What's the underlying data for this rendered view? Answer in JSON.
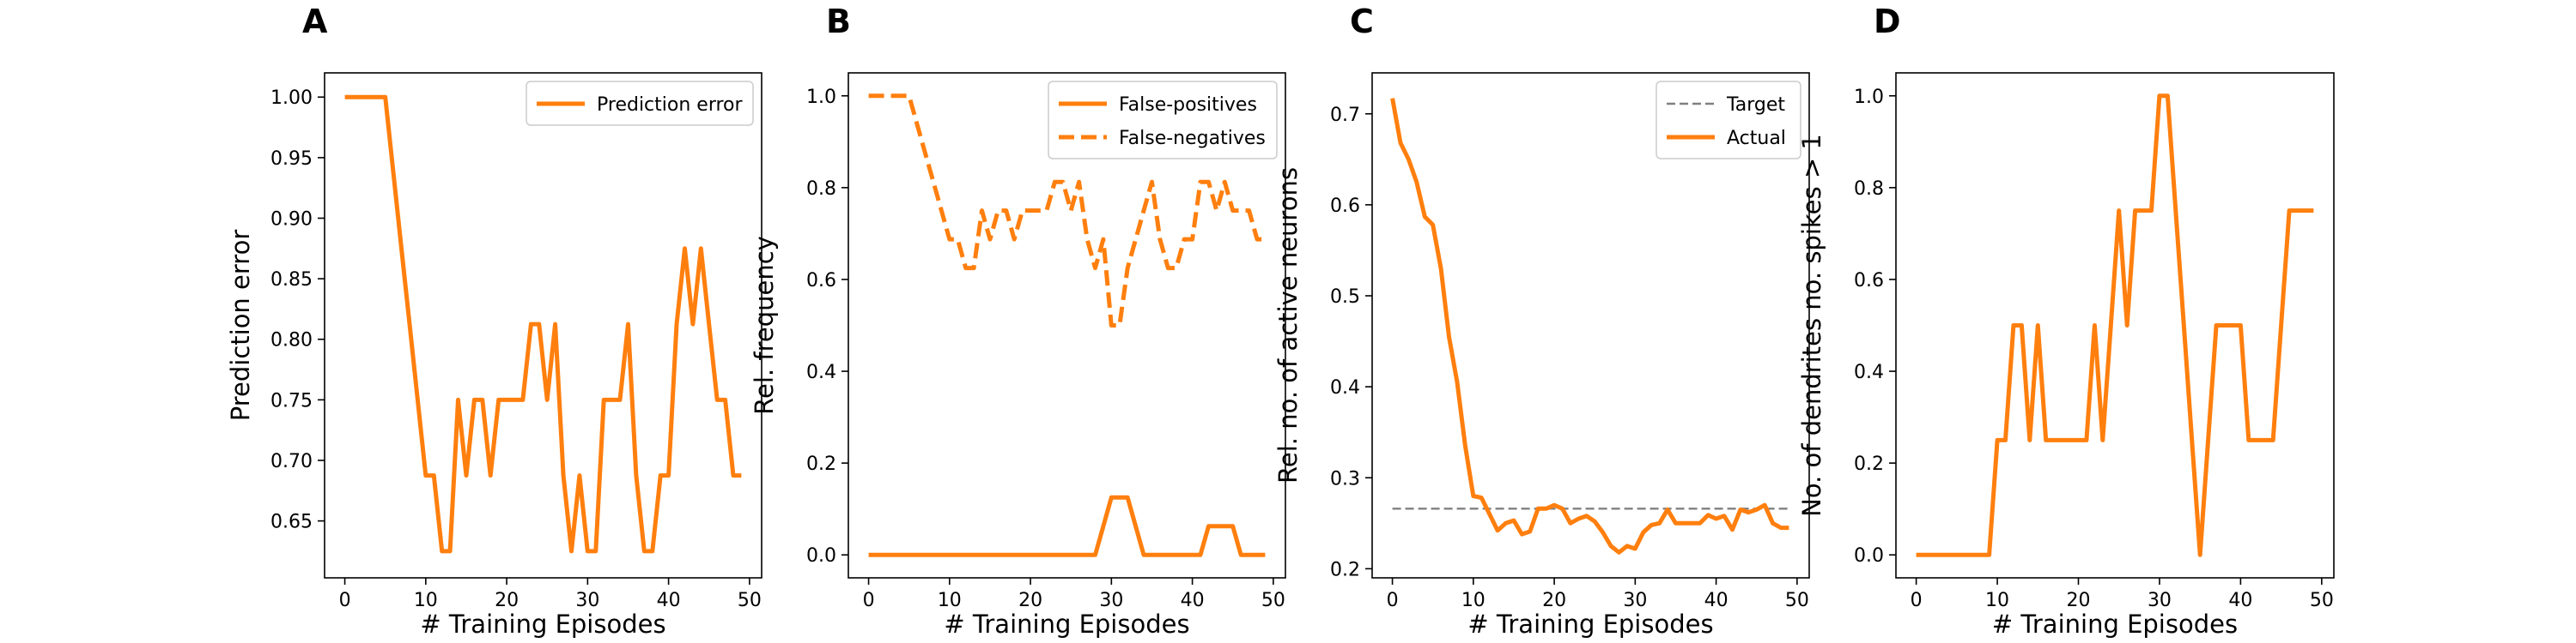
{
  "chart_data": [
    {
      "panel": "A",
      "type": "line",
      "xlabel": "# Training Episodes",
      "ylabel": "Prediction error",
      "xlim": [
        -2.5,
        51.5
      ],
      "ylim": [
        0.603,
        1.02
      ],
      "xticks": [
        0,
        10,
        20,
        30,
        40,
        50
      ],
      "xtick_labels": [
        "0",
        "10",
        "20",
        "30",
        "40",
        "50"
      ],
      "yticks": [
        0.65,
        0.7,
        0.75,
        0.8,
        0.85,
        0.9,
        0.95,
        1.0
      ],
      "ytick_labels": [
        "0.65",
        "0.70",
        "0.75",
        "0.80",
        "0.85",
        "0.90",
        "0.95",
        "1.00"
      ],
      "legend_position": "top-right",
      "series": [
        {
          "name": "Prediction error",
          "color": "#ff7f0e",
          "dash": "solid",
          "x": [
            0,
            1,
            2,
            3,
            4,
            5,
            6,
            7,
            8,
            9,
            10,
            11,
            12,
            13,
            14,
            15,
            16,
            17,
            18,
            19,
            20,
            21,
            22,
            23,
            24,
            25,
            26,
            27,
            28,
            29,
            30,
            31,
            32,
            33,
            34,
            35,
            36,
            37,
            38,
            39,
            40,
            41,
            42,
            43,
            44,
            45,
            46,
            47,
            48,
            49
          ],
          "y": [
            1.0,
            1.0,
            1.0,
            1.0,
            1.0,
            1.0,
            0.9375,
            0.875,
            0.8125,
            0.75,
            0.6875,
            0.6875,
            0.625,
            0.625,
            0.75,
            0.6875,
            0.75,
            0.75,
            0.6875,
            0.75,
            0.75,
            0.75,
            0.75,
            0.8125,
            0.8125,
            0.75,
            0.8125,
            0.6875,
            0.625,
            0.6875,
            0.625,
            0.625,
            0.75,
            0.75,
            0.75,
            0.8125,
            0.6875,
            0.625,
            0.625,
            0.6875,
            0.6875,
            0.8125,
            0.875,
            0.8125,
            0.875,
            0.8125,
            0.75,
            0.75,
            0.6875,
            0.6875
          ]
        }
      ]
    },
    {
      "panel": "B",
      "type": "line",
      "xlabel": "# Training Episodes",
      "ylabel": "Rel. frequency",
      "xlim": [
        -2.5,
        51.5
      ],
      "ylim": [
        -0.05,
        1.05
      ],
      "xticks": [
        0,
        10,
        20,
        30,
        40,
        50
      ],
      "xtick_labels": [
        "0",
        "10",
        "20",
        "30",
        "40",
        "50"
      ],
      "yticks": [
        0.0,
        0.2,
        0.4,
        0.6,
        0.8,
        1.0
      ],
      "ytick_labels": [
        "0.0",
        "0.2",
        "0.4",
        "0.6",
        "0.8",
        "1.0"
      ],
      "legend_position": "top-right",
      "series": [
        {
          "name": "False-positives",
          "color": "#ff7f0e",
          "dash": "solid",
          "x": [
            0,
            1,
            2,
            3,
            4,
            5,
            6,
            7,
            8,
            9,
            10,
            11,
            12,
            13,
            14,
            15,
            16,
            17,
            18,
            19,
            20,
            21,
            22,
            23,
            24,
            25,
            26,
            27,
            28,
            29,
            30,
            31,
            32,
            33,
            34,
            35,
            36,
            37,
            38,
            39,
            40,
            41,
            42,
            43,
            44,
            45,
            46,
            47,
            48,
            49
          ],
          "y": [
            0,
            0,
            0,
            0,
            0,
            0,
            0,
            0,
            0,
            0,
            0,
            0,
            0,
            0,
            0,
            0,
            0,
            0,
            0,
            0,
            0,
            0,
            0,
            0,
            0,
            0,
            0,
            0,
            0,
            0.0625,
            0.125,
            0.125,
            0.125,
            0.0625,
            0,
            0,
            0,
            0,
            0,
            0,
            0,
            0,
            0.0625,
            0.0625,
            0.0625,
            0.0625,
            0,
            0,
            0,
            0
          ]
        },
        {
          "name": "False-negatives",
          "color": "#ff7f0e",
          "dash": "dashed",
          "x": [
            0,
            1,
            2,
            3,
            4,
            5,
            6,
            7,
            8,
            9,
            10,
            11,
            12,
            13,
            14,
            15,
            16,
            17,
            18,
            19,
            20,
            21,
            22,
            23,
            24,
            25,
            26,
            27,
            28,
            29,
            30,
            31,
            32,
            33,
            34,
            35,
            36,
            37,
            38,
            39,
            40,
            41,
            42,
            43,
            44,
            45,
            46,
            47,
            48,
            49
          ],
          "y": [
            1.0,
            1.0,
            1.0,
            1.0,
            1.0,
            1.0,
            0.9375,
            0.875,
            0.8125,
            0.75,
            0.6875,
            0.6875,
            0.625,
            0.625,
            0.75,
            0.6875,
            0.75,
            0.75,
            0.6875,
            0.75,
            0.75,
            0.75,
            0.75,
            0.8125,
            0.8125,
            0.75,
            0.8125,
            0.6875,
            0.625,
            0.6875,
            0.5,
            0.5,
            0.625,
            0.6875,
            0.75,
            0.8125,
            0.6875,
            0.625,
            0.625,
            0.6875,
            0.6875,
            0.8125,
            0.8125,
            0.75,
            0.8125,
            0.75,
            0.75,
            0.75,
            0.6875,
            0.6875
          ]
        }
      ]
    },
    {
      "panel": "C",
      "type": "line",
      "xlabel": "# Training Episodes",
      "ylabel": "Rel. no. of active neurons",
      "xlim": [
        -2.5,
        51.5
      ],
      "ylim": [
        0.19,
        0.745
      ],
      "xticks": [
        0,
        10,
        20,
        30,
        40,
        50
      ],
      "xtick_labels": [
        "0",
        "10",
        "20",
        "30",
        "40",
        "50"
      ],
      "yticks": [
        0.2,
        0.3,
        0.4,
        0.5,
        0.6,
        0.7
      ],
      "ytick_labels": [
        "0.2",
        "0.3",
        "0.4",
        "0.5",
        "0.6",
        "0.7"
      ],
      "legend_position": "top-right",
      "series": [
        {
          "name": "Target",
          "color": "#808080",
          "dash": "dashed",
          "x": [
            0,
            49
          ],
          "y": [
            0.266,
            0.266
          ]
        },
        {
          "name": "Actual",
          "color": "#ff7f0e",
          "dash": "solid",
          "x": [
            0,
            1,
            2,
            3,
            4,
            5,
            6,
            7,
            8,
            9,
            10,
            11,
            12,
            13,
            14,
            15,
            16,
            17,
            18,
            19,
            20,
            21,
            22,
            23,
            24,
            25,
            26,
            27,
            28,
            29,
            30,
            31,
            32,
            33,
            34,
            35,
            36,
            37,
            38,
            39,
            40,
            41,
            42,
            43,
            44,
            45,
            46,
            47,
            48,
            49
          ],
          "y": [
            0.717,
            0.668,
            0.65,
            0.625,
            0.587,
            0.578,
            0.53,
            0.455,
            0.405,
            0.335,
            0.28,
            0.278,
            0.26,
            0.242,
            0.25,
            0.253,
            0.238,
            0.241,
            0.266,
            0.266,
            0.27,
            0.266,
            0.25,
            0.255,
            0.258,
            0.252,
            0.24,
            0.225,
            0.218,
            0.225,
            0.222,
            0.24,
            0.248,
            0.25,
            0.265,
            0.25,
            0.25,
            0.25,
            0.25,
            0.259,
            0.255,
            0.258,
            0.243,
            0.265,
            0.262,
            0.265,
            0.27,
            0.25,
            0.245,
            0.245
          ]
        }
      ]
    },
    {
      "panel": "D",
      "type": "line",
      "xlabel": "# Training Episodes",
      "ylabel": "No. of dendrites no. spikes > 1",
      "xlim": [
        -2.5,
        51.5
      ],
      "ylim": [
        -0.05,
        1.05
      ],
      "xticks": [
        0,
        10,
        20,
        30,
        40,
        50
      ],
      "xtick_labels": [
        "0",
        "10",
        "20",
        "30",
        "40",
        "50"
      ],
      "yticks": [
        0.0,
        0.2,
        0.4,
        0.6,
        0.8,
        1.0
      ],
      "ytick_labels": [
        "0.0",
        "0.2",
        "0.4",
        "0.6",
        "0.8",
        "1.0"
      ],
      "legend_position": "none",
      "series": [
        {
          "name": "",
          "color": "#ff7f0e",
          "dash": "solid",
          "x": [
            0,
            1,
            2,
            3,
            4,
            5,
            6,
            7,
            8,
            9,
            10,
            11,
            12,
            13,
            14,
            15,
            16,
            17,
            18,
            19,
            20,
            21,
            22,
            23,
            24,
            25,
            26,
            27,
            28,
            29,
            30,
            31,
            32,
            33,
            34,
            35,
            36,
            37,
            38,
            39,
            40,
            41,
            42,
            43,
            44,
            45,
            46,
            47,
            48,
            49
          ],
          "y": [
            0,
            0,
            0,
            0,
            0,
            0,
            0,
            0,
            0,
            0,
            0.25,
            0.25,
            0.5,
            0.5,
            0.25,
            0.5,
            0.25,
            0.25,
            0.25,
            0.25,
            0.25,
            0.25,
            0.5,
            0.25,
            0.5,
            0.75,
            0.5,
            0.75,
            0.75,
            0.75,
            1.0,
            1.0,
            0.75,
            0.5,
            0.25,
            0.0,
            0.25,
            0.5,
            0.5,
            0.5,
            0.5,
            0.25,
            0.25,
            0.25,
            0.25,
            0.5,
            0.75,
            0.75,
            0.75,
            0.75
          ]
        }
      ]
    }
  ]
}
